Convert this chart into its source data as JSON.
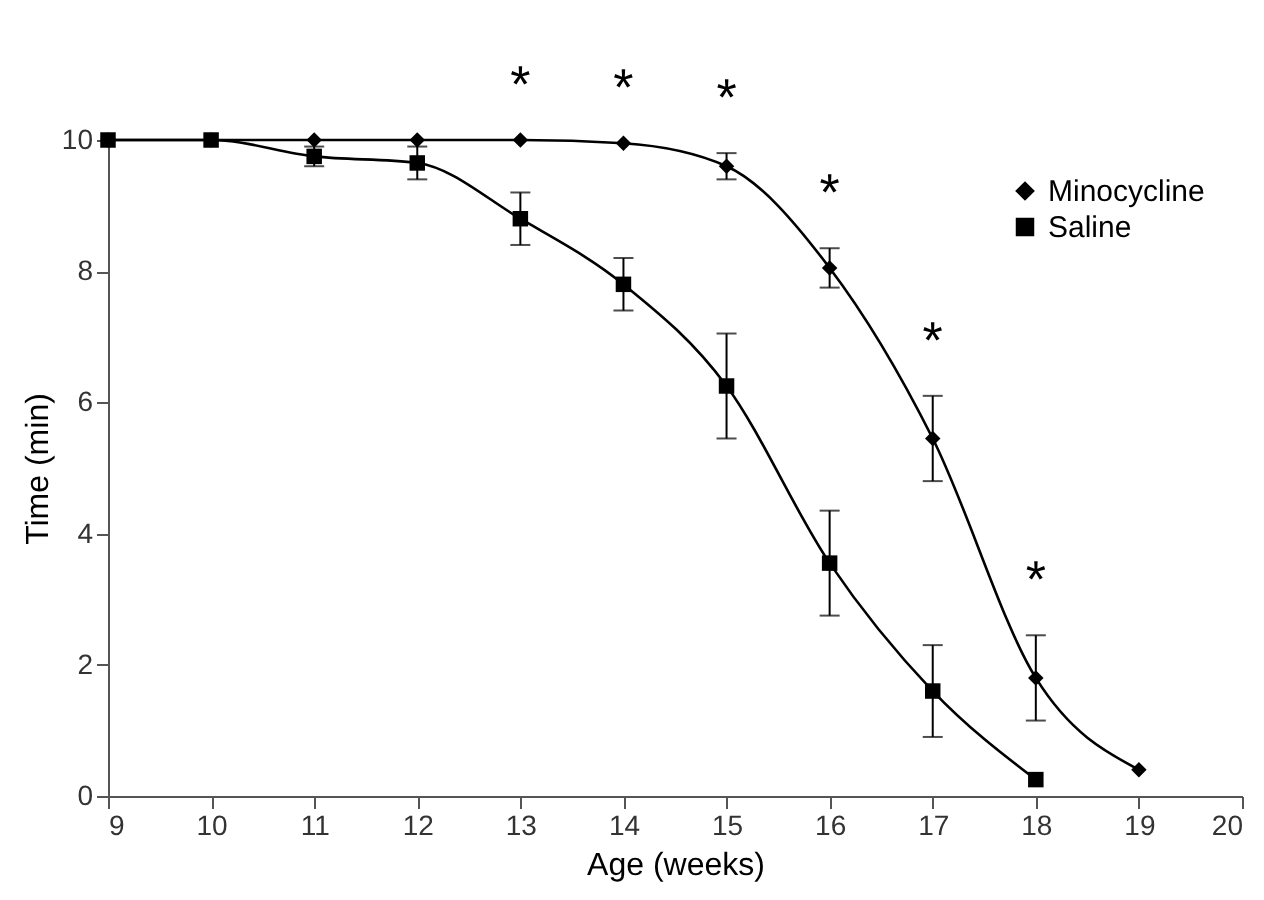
{
  "chart_data": {
    "type": "line",
    "xlabel": "Age (weeks)",
    "ylabel": "Time (min)",
    "x": [
      9,
      10,
      11,
      12,
      13,
      14,
      15,
      16,
      17,
      18,
      19
    ],
    "series": [
      {
        "name": "Minocycline",
        "color": "#000000",
        "marker": "diamond",
        "values": [
          10,
          10,
          10,
          10,
          10,
          9.95,
          9.6,
          8.05,
          5.45,
          1.8,
          0.4
        ],
        "errors": [
          null,
          null,
          null,
          null,
          null,
          null,
          0.2,
          0.3,
          0.65,
          0.65,
          null
        ]
      },
      {
        "name": "Saline",
        "color": "#000000",
        "marker": "square",
        "values": [
          10,
          10,
          9.75,
          9.65,
          8.8,
          7.8,
          6.25,
          3.55,
          1.6,
          0.25,
          null
        ],
        "errors": [
          null,
          null,
          0.15,
          0.25,
          0.4,
          0.4,
          0.8,
          0.8,
          0.7,
          null,
          null
        ]
      }
    ],
    "xlim": [
      9,
      20
    ],
    "xticks": [
      9,
      10,
      11,
      12,
      13,
      14,
      15,
      16,
      17,
      18,
      19,
      20
    ],
    "ylim": [
      0,
      10
    ],
    "yticks": [
      0,
      2,
      4,
      6,
      8,
      10
    ],
    "grid": false,
    "legend": "top right",
    "line_style": "solid",
    "annotations": [
      {
        "text": "*",
        "x": 13,
        "y": 10
      },
      {
        "text": "*",
        "x": 14,
        "y": 9.95
      },
      {
        "text": "*",
        "x": 15,
        "y": 9.8
      },
      {
        "text": "*",
        "x": 16,
        "y": 8.35
      },
      {
        "text": "*",
        "x": 17,
        "y": 6.1
      },
      {
        "text": "*",
        "x": 18,
        "y": 2.45
      }
    ]
  }
}
